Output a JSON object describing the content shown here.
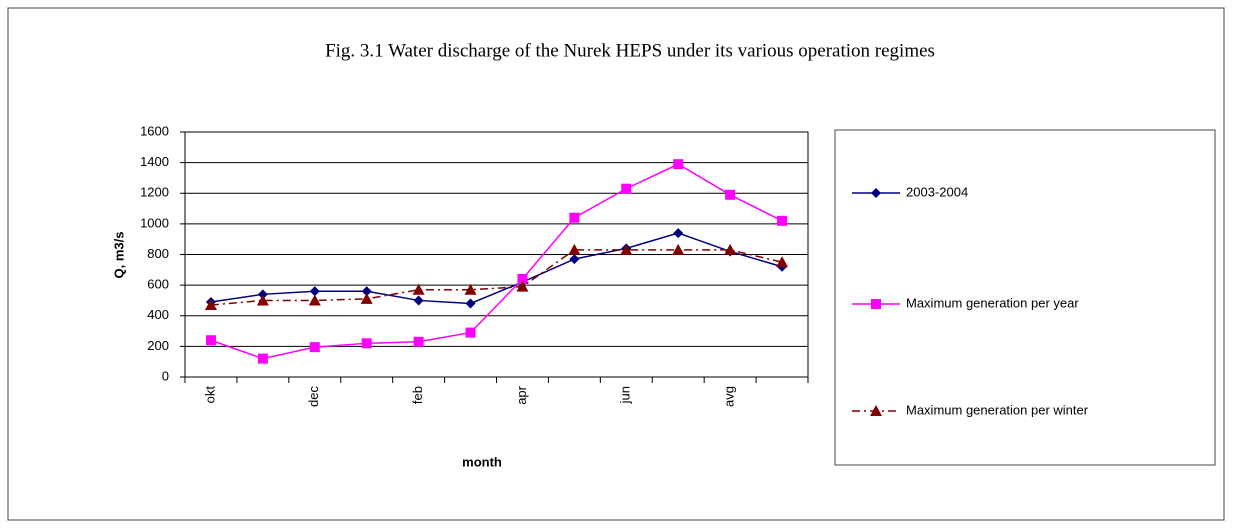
{
  "chart_data": {
    "type": "line",
    "title": "Fig. 3.1 Water discharge of the Nurek HEPS under its various operation regimes",
    "x_label": "month",
    "y_label": "Q, m3/s",
    "categories": [
      "okt",
      null,
      "dec",
      null,
      "feb",
      null,
      "apr",
      null,
      "jun",
      null,
      "avg",
      null
    ],
    "series": [
      {
        "name": "2003-2004",
        "color": "#000080",
        "marker": "diamond",
        "dash": false,
        "values": [
          490,
          540,
          560,
          560,
          500,
          480,
          620,
          770,
          840,
          940,
          820,
          720
        ]
      },
      {
        "name": "Maximum generation  per year",
        "color": "#ff00ff",
        "marker": "square",
        "dash": false,
        "values": [
          240,
          120,
          195,
          220,
          230,
          290,
          640,
          1040,
          1230,
          1390,
          1190,
          1020
        ]
      },
      {
        "name": "Maximum generation  per winter",
        "color": "#800000",
        "marker": "triangle",
        "dash": true,
        "values": [
          470,
          500,
          500,
          510,
          570,
          570,
          590,
          830,
          830,
          830,
          830,
          750
        ]
      }
    ],
    "ylim": [
      0,
      1600
    ],
    "yticks": [
      0,
      200,
      400,
      600,
      800,
      1000,
      1200,
      1400,
      1600
    ],
    "grid": true
  }
}
